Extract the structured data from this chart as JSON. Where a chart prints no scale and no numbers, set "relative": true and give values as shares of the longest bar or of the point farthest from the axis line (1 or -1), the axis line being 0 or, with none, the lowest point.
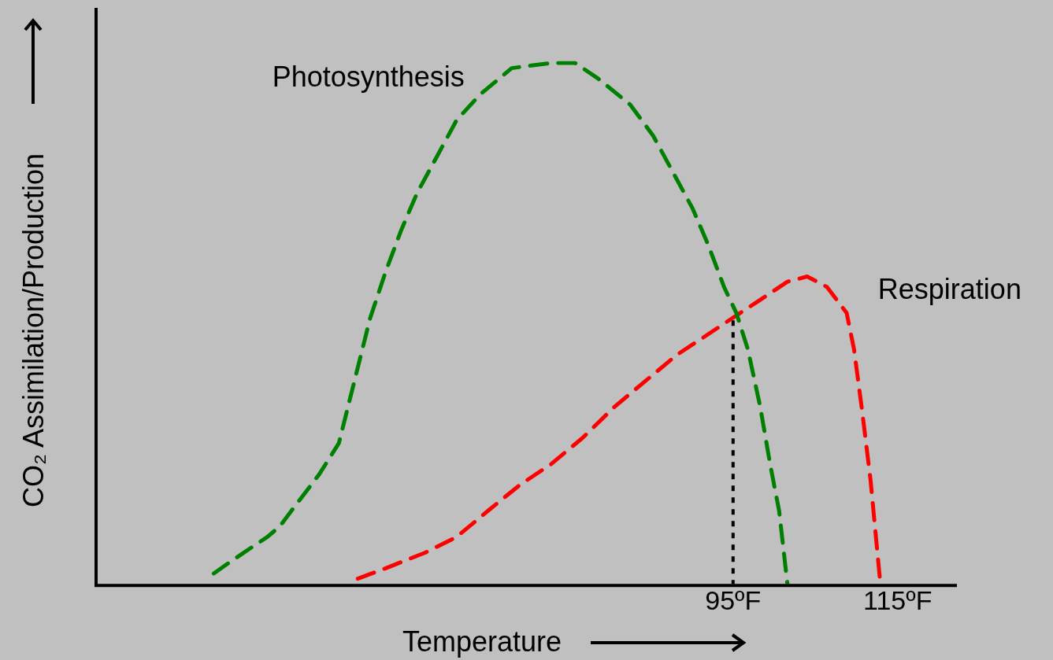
{
  "chart_data": {
    "type": "line",
    "xlabel": "Temperature",
    "ylabel": "CO₂ Assimilation/Production",
    "relative": true,
    "xlim": [
      17.6,
      122.2
    ],
    "xticks": [
      {
        "value": 95,
        "label": "95ºF"
      },
      {
        "value": 115,
        "label": "115ºF"
      }
    ],
    "grid": false,
    "legend": false,
    "marker": "none",
    "series": [
      {
        "name": "Photosynthesis",
        "color": "#008000",
        "line_style": "dashed",
        "x": [
          31.9,
          33.7,
          36.5,
          38.4,
          39.9,
          41.8,
          44.7,
          47.1,
          49.0,
          50.9,
          52.8,
          54.7,
          56.6,
          59.0,
          61.4,
          64.3,
          68.1,
          72.9,
          75.8,
          78.6,
          82.5,
          85.3,
          87.7,
          90.1,
          92.0,
          93.9,
          95.4,
          96.8,
          98.3,
          99.5,
          100.6,
          101.6
        ],
        "values": [
          0.02,
          0.04,
          0.07,
          0.09,
          0.11,
          0.15,
          0.21,
          0.27,
          0.39,
          0.51,
          0.6,
          0.68,
          0.75,
          0.82,
          0.89,
          0.94,
          0.99,
          1,
          1,
          0.97,
          0.92,
          0.86,
          0.79,
          0.72,
          0.65,
          0.57,
          0.52,
          0.45,
          0.34,
          0.23,
          0.14,
          0
        ]
      },
      {
        "name": "Respiration",
        "color": "#ff0000",
        "line_style": "dashed",
        "x": [
          49.4,
          52.8,
          57.6,
          61.4,
          65.2,
          69.1,
          72.9,
          76.7,
          80.6,
          84.4,
          88.2,
          91.1,
          94.9,
          97.8,
          101.6,
          104.0,
          106.4,
          108.8,
          109.7,
          110.7,
          111.7,
          112.6,
          112.9
        ],
        "values": [
          0.01,
          0.03,
          0.06,
          0.09,
          0.14,
          0.19,
          0.23,
          0.28,
          0.34,
          0.39,
          0.44,
          0.47,
          0.51,
          0.54,
          0.58,
          0.59,
          0.57,
          0.52,
          0.45,
          0.33,
          0.2,
          0.05,
          0
        ]
      },
      {
        "color": "#000000",
        "line_style": "dotted",
        "x": [
          95,
          95
        ],
        "values": [
          0,
          0.51
        ]
      }
    ]
  }
}
